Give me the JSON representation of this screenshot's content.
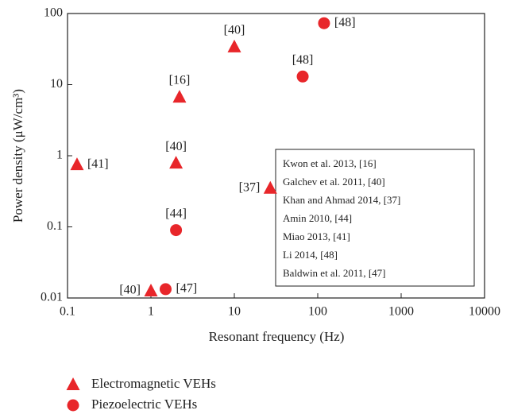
{
  "chart_data": {
    "type": "scatter",
    "x_label": "Resonant frequency (Hz)",
    "y_label": "Power density (μW/cm³)",
    "x_log": true,
    "y_log": true,
    "xlim": [
      0.1,
      10000
    ],
    "xticks": [
      0.1,
      1,
      10,
      100,
      1000,
      10000
    ],
    "ylim": [
      0.01,
      100
    ],
    "yticks": [
      0.01,
      0.1,
      1,
      10,
      100
    ],
    "series": [
      {
        "name": "Electromagnetic VEHs",
        "color": "#e8262a",
        "marker": "triangle",
        "x": [
          0.13,
          2.2,
          10,
          2,
          27,
          1
        ],
        "values": [
          0.75,
          6.7,
          34,
          0.79,
          0.35,
          0.0126
        ],
        "labels": [
          "[41]",
          "[16]",
          "[40]",
          "[40]",
          "[37]",
          "[40]"
        ]
      },
      {
        "name": "Piezoelectric VEHs",
        "color": "#e8262a",
        "marker": "circle",
        "x": [
          119,
          66,
          2,
          1.5
        ],
        "values": [
          73,
          13,
          0.09,
          0.0133
        ],
        "labels": [
          "[48]",
          "[48]",
          "[44]",
          "[47]"
        ]
      }
    ],
    "references": [
      "Kwon et al. 2013, [16]",
      "Galchev et al. 2011, [40]",
      "Khan and Ahmad 2014, [37]",
      "Amin 2010, [44]",
      "Miao 2013, [41]",
      "Li 2014, [48]",
      "Baldwin et al. 2011, [47]"
    ]
  }
}
